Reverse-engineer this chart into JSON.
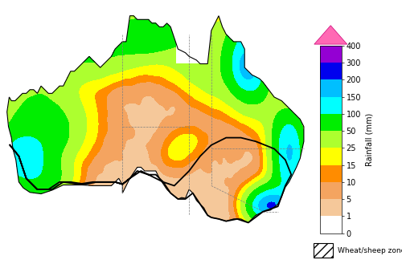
{
  "colorbar_label": "Rainfall (mm)",
  "colorbar_levels": [
    0,
    1,
    5,
    10,
    15,
    25,
    50,
    100,
    150,
    200,
    300,
    400
  ],
  "colorbar_colors": [
    "#ffffff",
    "#f5c89a",
    "#f4a460",
    "#ff8c00",
    "#ffff00",
    "#adff2f",
    "#00ee00",
    "#00ffff",
    "#00bfff",
    "#0000ee",
    "#9400d3",
    "#ff00ff"
  ],
  "arrow_color": "#ff69b4",
  "background_color": "#ffffff",
  "fig_width": 5.0,
  "fig_height": 3.34,
  "dpi": 100,
  "colorbar_tick_labels": [
    "0",
    "1",
    "5",
    "10",
    "15",
    "25",
    "50",
    "100",
    "150",
    "200",
    "300",
    "400"
  ],
  "wheat_sheep_label": "Wheat/sheep zone",
  "wheat_hatch": "///",
  "map_xlim": [
    113,
    154
  ],
  "map_ylim": [
    -44,
    -10
  ]
}
